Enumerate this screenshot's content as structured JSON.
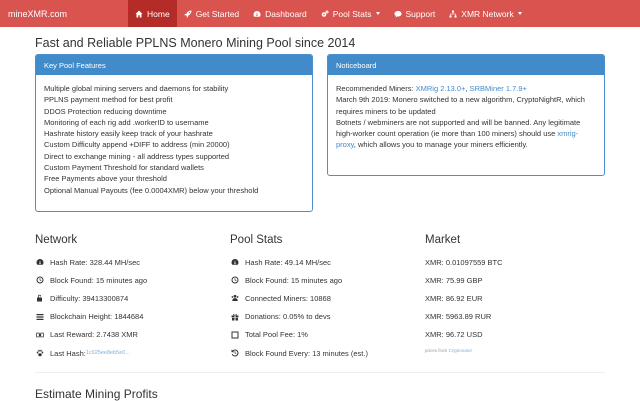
{
  "navbar": {
    "brand": "mineXMR.com",
    "items": [
      {
        "label": "Home",
        "icon": "home-icon",
        "active": true
      },
      {
        "label": "Get Started",
        "icon": "rocket-icon",
        "active": false
      },
      {
        "label": "Dashboard",
        "icon": "dashboard-icon",
        "active": false
      },
      {
        "label": "Pool Stats",
        "icon": "cogs-icon",
        "active": false,
        "dropdown": true
      },
      {
        "label": "Support",
        "icon": "comments-icon",
        "active": false
      },
      {
        "label": "XMR Network",
        "icon": "sitemap-icon",
        "active": false,
        "dropdown": true
      }
    ],
    "color": "#d9534f",
    "active_color": "#b52b27"
  },
  "page_title": "Fast and Reliable PPLNS Monero Mining Pool since 2014",
  "features_panel": {
    "title": "Key Pool Features",
    "items": [
      "Multiple global mining servers and daemons for stability",
      "PPLNS payment method for best profit",
      "DDOS Protection reducing downtime",
      "Monitoring of each rig add .workerID to username",
      "Hashrate history easily keep track of your hashrate",
      "Custom Difficulty append +DIFF to address (min 20000)",
      "Direct to exchange mining - all address types supported",
      "Custom Payment Threshold for standard wallets",
      "Free Payments above your threshold",
      "Optional Manual Payouts (fee 0.0004XMR) below your threshold"
    ]
  },
  "noticeboard": {
    "title": "Noticeboard",
    "recommended_prefix": "Recommended Miners: ",
    "miner1": "XMRig 2.13.0+",
    "sep": ", ",
    "miner2": "SRBMiner 1.7.9+",
    "notice1": "March 9th 2019: Monero switched to a new algorithm, CryptoNightR, which requires miners to be updated",
    "notice2_prefix": "Botnets / webminers are not supported and will be banned. Any legitimate high-worker count operation (ie more than 100 miners) should use ",
    "notice2_link": "xmrig-proxy",
    "notice2_suffix": ", which allows you to manage your miners efficiently."
  },
  "network": {
    "title": "Network",
    "stats": [
      {
        "icon": "dashboard-icon",
        "text": "Hash Rate: 328.44 MH/sec"
      },
      {
        "icon": "clock-icon",
        "text": "Block Found: 15 minutes ago"
      },
      {
        "icon": "unlock-icon",
        "text": "Difficulty: 39413300874"
      },
      {
        "icon": "bars-icon",
        "text": "Blockchain Height: 1844684"
      },
      {
        "icon": "money-icon",
        "text": "Last Reward: 2.7438 XMR"
      },
      {
        "icon": "paw-icon",
        "text": "Last Hash: ",
        "link": "1c925ee8eb5e0..."
      }
    ]
  },
  "pool_stats": {
    "title": "Pool Stats",
    "stats": [
      {
        "icon": "dashboard-icon",
        "text": "Hash Rate: 49.14 MH/sec"
      },
      {
        "icon": "clock-icon",
        "text": "Block Found: 15 minutes ago"
      },
      {
        "icon": "users-icon",
        "text": "Connected Miners: 10868"
      },
      {
        "icon": "gift-icon",
        "text": "Donations: 0.05% to devs"
      },
      {
        "icon": "percent-icon",
        "text": "Total Pool Fee: 1%"
      },
      {
        "icon": "history-icon",
        "text": "Block Found Every: 13 minutes (est.)"
      }
    ]
  },
  "market": {
    "title": "Market",
    "stats": [
      "XMR: 0.01097559 BTC",
      "XMR: 75.99 GBP",
      "XMR: 86.92 EUR",
      "XMR: 5963.89 RUR",
      "XMR: 96.72 USD"
    ],
    "prices_prefix": "prices from ",
    "prices_source": "Cryptonator"
  },
  "estimate_title": "Estimate Mining Profits"
}
